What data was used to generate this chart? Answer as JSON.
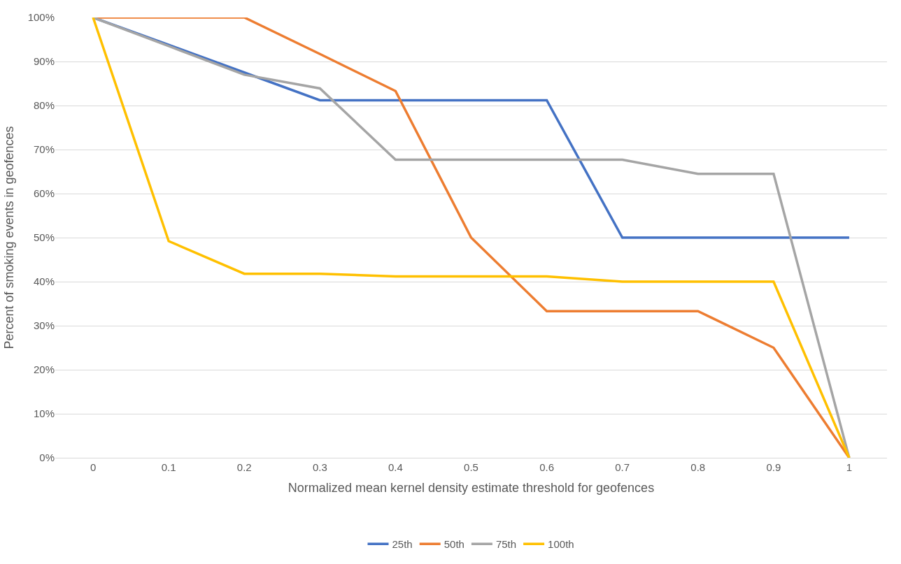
{
  "chart_data": {
    "type": "line",
    "xlabel": "Normalized mean kernel density estimate threshold for geofences",
    "ylabel": "Percent of smoking events in geofences",
    "categories": [
      "0",
      "0.1",
      "0.2",
      "0.3",
      "0.4",
      "0.5",
      "0.6",
      "0.7",
      "0.8",
      "0.9",
      "1"
    ],
    "series": [
      {
        "name": "25th",
        "color": "#4472c4",
        "values": [
          100,
          93.8,
          87.5,
          81.2,
          81.2,
          81.2,
          81.2,
          50,
          50,
          50,
          50
        ]
      },
      {
        "name": "50th",
        "color": "#ed7d31",
        "values": [
          100,
          100,
          100,
          91.7,
          83.3,
          50,
          33.3,
          33.3,
          33.3,
          25,
          0
        ]
      },
      {
        "name": "75th",
        "color": "#a5a5a5",
        "values": [
          100,
          93.5,
          87,
          83.9,
          67.7,
          67.7,
          67.7,
          67.7,
          64.5,
          64.5,
          0
        ]
      },
      {
        "name": "100th",
        "color": "#ffc000",
        "values": [
          100,
          49.2,
          41.8,
          41.8,
          41.2,
          41.2,
          41.2,
          40,
          40,
          40,
          0
        ]
      }
    ],
    "ylim": [
      0,
      100
    ],
    "yticks": [
      {
        "value": 0,
        "label": "0%"
      },
      {
        "value": 10,
        "label": "10%"
      },
      {
        "value": 20,
        "label": "20%"
      },
      {
        "value": 30,
        "label": "30%"
      },
      {
        "value": 40,
        "label": "40%"
      },
      {
        "value": 50,
        "label": "50%"
      },
      {
        "value": 60,
        "label": "60%"
      },
      {
        "value": 70,
        "label": "70%"
      },
      {
        "value": 80,
        "label": "80%"
      },
      {
        "value": 90,
        "label": "90%"
      },
      {
        "value": 100,
        "label": "100%"
      }
    ],
    "grid": "y",
    "legend": "bottom",
    "marker": "none",
    "line_style": "solid"
  }
}
